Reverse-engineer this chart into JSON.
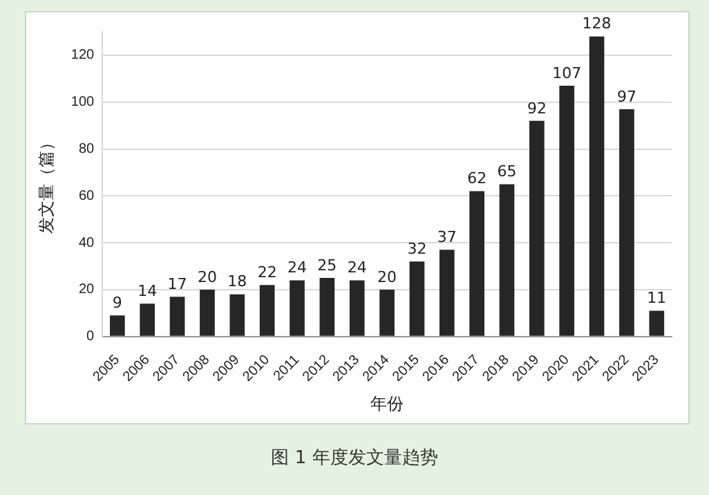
{
  "chart_data": {
    "type": "bar",
    "xlabel": "年份",
    "ylabel": "发文量（篇）",
    "annotations": [
      "图 1  年度发文量趋势"
    ],
    "categories": [
      "2005",
      "2006",
      "2007",
      "2008",
      "2009",
      "2010",
      "2011",
      "2012",
      "2013",
      "2014",
      "2015",
      "2016",
      "2017",
      "2018",
      "2019",
      "2020",
      "2021",
      "2022",
      "2023"
    ],
    "values": [
      9,
      14,
      17,
      20,
      18,
      22,
      24,
      25,
      24,
      20,
      32,
      37,
      62,
      65,
      92,
      107,
      128,
      97,
      11
    ],
    "color": "#262626",
    "ylim": [
      0,
      130
    ],
    "yticks": [
      0,
      20,
      40,
      60,
      80,
      100,
      120
    ],
    "grid": "y",
    "data_labels": true,
    "legend": false
  }
}
